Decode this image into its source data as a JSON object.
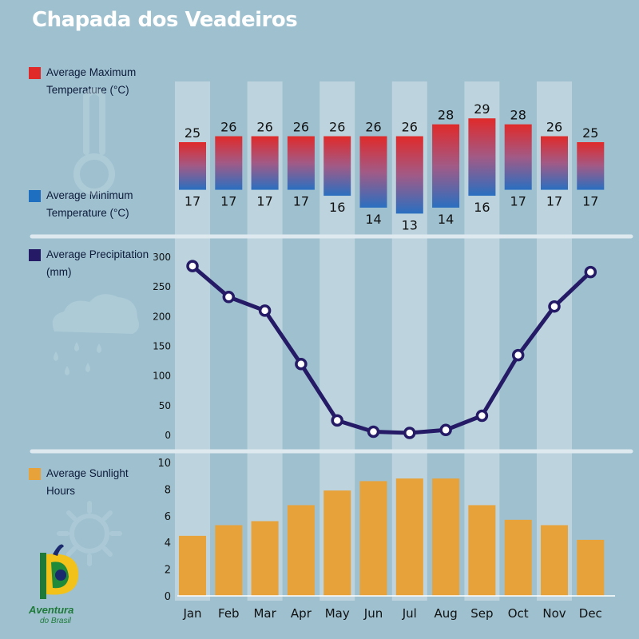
{
  "title": "Chapada dos Veadeiros",
  "legend": {
    "max_temp": "Average Maximum Temperature (°C)",
    "min_temp": "Average Minimum Temperature (°C)",
    "precip": "Average Precipitation (mm)",
    "sunlight": "Average Sunlight Hours"
  },
  "logo": {
    "line1": "Aventura",
    "line2": "do Brasil"
  },
  "icons": [
    "thermometer-icon",
    "rain-cloud-icon",
    "sun-icon",
    "aventura-do-brasil-logo"
  ],
  "colors": {
    "background": "#9ec0cf",
    "max_temp": "#e02a2a",
    "min_temp": "#1f6fc0",
    "precip_line": "#241a66",
    "sunlight_bar": "#e8a23a",
    "column_highlight": "#c7d9e2",
    "title": "#ffffff"
  },
  "chart_data": [
    {
      "type": "bar",
      "subtype": "range",
      "categories": [
        "Jan",
        "Feb",
        "Mar",
        "Apr",
        "May",
        "Jun",
        "Jul",
        "Aug",
        "Sep",
        "Oct",
        "Nov",
        "Dec"
      ],
      "series": [
        {
          "name": "Average Maximum Temperature (°C)",
          "values": [
            25,
            26,
            26,
            26,
            26,
            26,
            26,
            28,
            29,
            28,
            26,
            25
          ]
        },
        {
          "name": "Average Minimum Temperature (°C)",
          "values": [
            17,
            17,
            17,
            17,
            16,
            14,
            13,
            14,
            16,
            17,
            17,
            17
          ]
        }
      ],
      "data_labels": true
    },
    {
      "type": "line",
      "categories": [
        "Jan",
        "Feb",
        "Mar",
        "Apr",
        "May",
        "Jun",
        "Jul",
        "Aug",
        "Sep",
        "Oct",
        "Nov",
        "Dec"
      ],
      "series": [
        {
          "name": "Average Precipitation (mm)",
          "values": [
            285,
            233,
            210,
            120,
            25,
            6,
            4,
            9,
            33,
            135,
            217,
            275
          ]
        }
      ],
      "y_ticks": [
        "0",
        "50",
        "100",
        "150",
        "200",
        "250",
        "300"
      ],
      "ylim": [
        0,
        300
      ],
      "markers": "hollow-circle"
    },
    {
      "type": "bar",
      "categories": [
        "Jan",
        "Feb",
        "Mar",
        "Apr",
        "May",
        "Jun",
        "Jul",
        "Aug",
        "Sep",
        "Oct",
        "Nov",
        "Dec"
      ],
      "series": [
        {
          "name": "Average Sunlight Hours",
          "values": [
            4.5,
            5.3,
            5.6,
            6.8,
            7.9,
            8.6,
            8.8,
            8.8,
            6.8,
            5.7,
            5.3,
            4.2
          ]
        }
      ],
      "y_ticks": [
        "0",
        "2",
        "4",
        "6",
        "8",
        "10"
      ],
      "ylim": [
        0,
        10
      ]
    }
  ]
}
